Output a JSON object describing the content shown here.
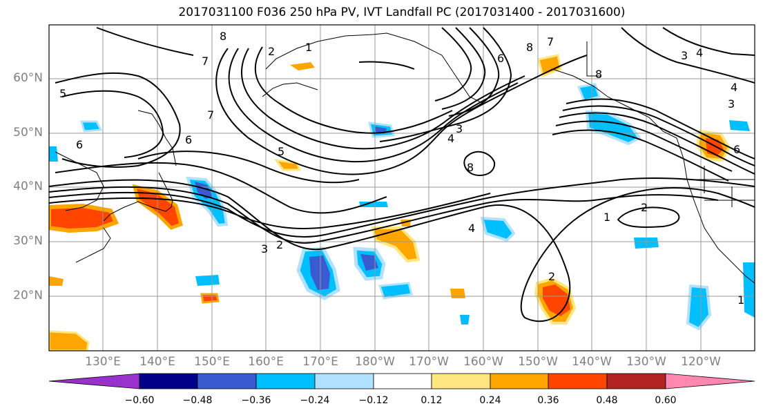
{
  "title": "2017031100 F036 250 hPa PV, IVT Landfall PC (2017031400 - 2017031600)",
  "lat_labels": [
    "60°N",
    "50°N",
    "40°N",
    "30°N",
    "20°N"
  ],
  "lon_labels": [
    "130°E",
    "140°E",
    "150°E",
    "160°E",
    "170°E",
    "180°W",
    "170°W",
    "160°W",
    "150°W",
    "140°W",
    "130°W",
    "120°W"
  ],
  "colorbar": {
    "ticks": [
      "−0.60",
      "−0.48",
      "−0.36",
      "−0.24",
      "−0.12",
      "0.12",
      "0.24",
      "0.36",
      "0.48",
      "0.60"
    ],
    "colors": [
      "#9932cc",
      "#00008b",
      "#3a5bd0",
      "#00bfff",
      "#b0e2ff",
      "#ffffff",
      "#ffe680",
      "#ffa500",
      "#ff4500",
      "#b22222",
      "#ff88b0"
    ]
  },
  "contour_labels": [
    "1",
    "2",
    "3",
    "4",
    "5",
    "6",
    "7",
    "8"
  ]
}
